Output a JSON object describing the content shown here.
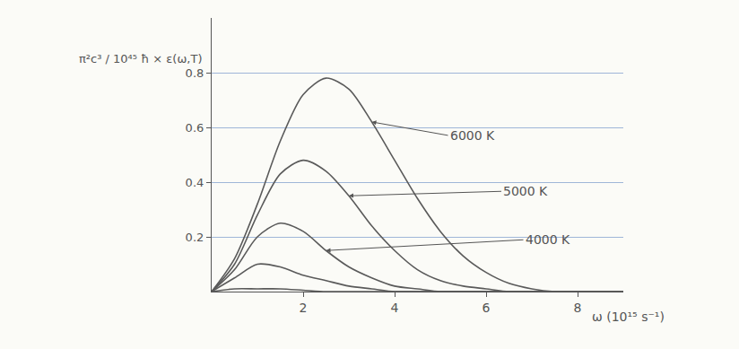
{
  "chart_data": {
    "type": "line",
    "y_label": "π²c³ / 10⁴⁵ ħ × ε(ω,T)",
    "x_label": "ω (10¹⁵ s⁻¹)",
    "x": [
      0,
      0.5,
      1,
      1.5,
      2,
      2.5,
      3,
      3.5,
      4,
      4.5,
      5,
      5.5,
      6,
      6.5,
      7,
      7.5,
      8,
      8.5,
      9
    ],
    "series": [
      {
        "name": "6000 K",
        "color": "#5a5a5a",
        "values": [
          0,
          0.12,
          0.32,
          0.55,
          0.72,
          0.78,
          0.74,
          0.62,
          0.48,
          0.34,
          0.22,
          0.13,
          0.07,
          0.03,
          0.01,
          0,
          0,
          0,
          0
        ]
      },
      {
        "name": "5000 K",
        "color": "#5a5a5a",
        "values": [
          0,
          0.1,
          0.28,
          0.43,
          0.48,
          0.44,
          0.35,
          0.24,
          0.15,
          0.08,
          0.04,
          0.02,
          0.01,
          0,
          0,
          0,
          0,
          0,
          0
        ]
      },
      {
        "name": "4000 K",
        "color": "#5a5a5a",
        "values": [
          0,
          0.08,
          0.2,
          0.25,
          0.22,
          0.15,
          0.09,
          0.05,
          0.02,
          0.01,
          0,
          0,
          0,
          0,
          0,
          0,
          0,
          0,
          0
        ]
      },
      {
        "name": null,
        "color": "#5a5a5a",
        "values": [
          0,
          0.05,
          0.1,
          0.09,
          0.06,
          0.04,
          0.02,
          0.01,
          0,
          0,
          0,
          0,
          0,
          0,
          0,
          0,
          0,
          0,
          0
        ]
      },
      {
        "name": null,
        "color": "#5a5a5a",
        "values": [
          0,
          0.01,
          0.01,
          0.01,
          0.005,
          0,
          0,
          0,
          0,
          0,
          0,
          0,
          0,
          0,
          0,
          0,
          0,
          0,
          0
        ]
      }
    ],
    "xlim": [
      0,
      9
    ],
    "xticks": [
      2,
      4,
      6,
      8
    ],
    "ylim": [
      0,
      1
    ],
    "yticks": [
      0.2,
      0.4,
      0.6,
      0.8
    ],
    "grid": true,
    "line_style": "solid"
  }
}
